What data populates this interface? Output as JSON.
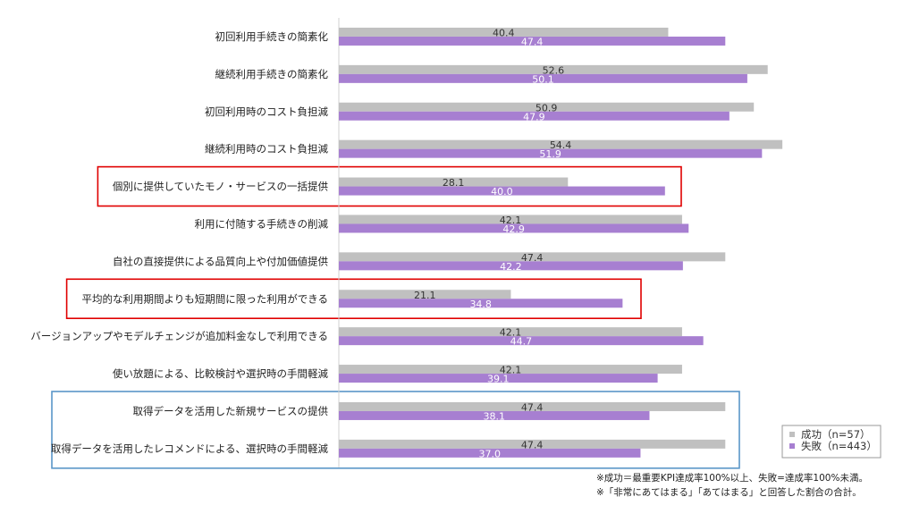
{
  "chart_data": {
    "type": "bar",
    "orientation": "horizontal",
    "categories": [
      "初回利用手続きの簡素化",
      "継続利用手続きの簡素化",
      "初回利用時のコスト負担減",
      "継続利用時のコスト負担減",
      "個別に提供していたモノ・サービスの一括提供",
      "利用に付随する手続きの削減",
      "自社の直接提供による品質向上や付加価値提供",
      "平均的な利用期間よりも短期間に限った利用ができる",
      "バージョンアップやモデルチェンジが追加料金なしで利用できる",
      "使い放題による、比較検討や選択時の手間軽減",
      "取得データを活用した新規サービスの提供",
      "取得データを活用したレコメンドによる、選択時の手間軽減"
    ],
    "series": [
      {
        "name": "成功（n=57）",
        "color": "#c0c0c0",
        "label_color": "#333333",
        "values": [
          40.4,
          52.6,
          50.9,
          54.4,
          28.1,
          42.1,
          47.4,
          21.1,
          42.1,
          42.1,
          47.4,
          47.4
        ]
      },
      {
        "name": "失敗（n=443）",
        "color": "#a77fd1",
        "label_color": "#ffffff",
        "values": [
          47.4,
          50.1,
          47.9,
          51.9,
          40.0,
          42.9,
          42.2,
          34.8,
          44.7,
          39.1,
          38.1,
          37.0
        ]
      }
    ],
    "xlim": [
      0,
      60
    ],
    "legend_position": "bottom-right",
    "highlight_boxes": [
      {
        "color": "#e00000",
        "categories": [
          4
        ]
      },
      {
        "color": "#e00000",
        "categories": [
          7
        ]
      },
      {
        "color": "#5a96c8",
        "categories": [
          10,
          11
        ]
      }
    ]
  },
  "notes": [
    "※成功＝最重要KPI達成率100%以上、失敗=達成率100%未満。",
    "※「非常にあてはまる」「あてはまる」と回答した割合の合計。"
  ]
}
